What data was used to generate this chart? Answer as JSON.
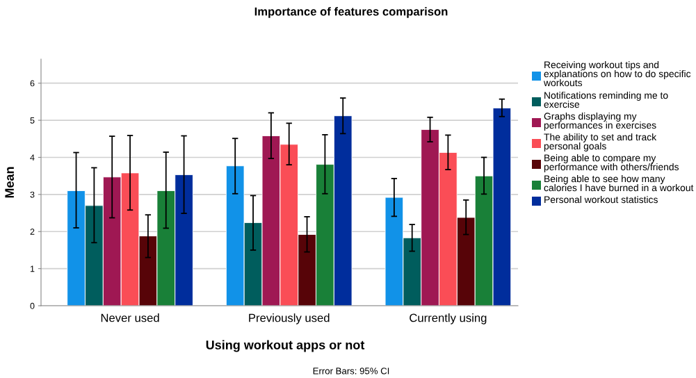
{
  "chart_data": {
    "type": "bar",
    "title": "Importance of features comparison",
    "xlabel": "Using workout apps or not",
    "ylabel": "Mean",
    "categories": [
      "Never used",
      "Previously used",
      "Currently using"
    ],
    "series": [
      {
        "name": "Receiving workout tips and explanations on how to do specific workouts",
        "color": "#1192e8",
        "values": [
          3.1,
          3.77,
          2.92
        ],
        "errors": [
          [
            2.1,
            4.13
          ],
          [
            3.02,
            4.51
          ],
          [
            2.41,
            3.43
          ]
        ]
      },
      {
        "name": "Notifications reminding me to exercise",
        "color": "#005d5d",
        "values": [
          2.7,
          2.24,
          1.83
        ],
        "errors": [
          [
            1.7,
            3.72
          ],
          [
            1.5,
            2.97
          ],
          [
            1.47,
            2.19
          ]
        ]
      },
      {
        "name": "Graphs displaying my performances in exercises",
        "color": "#9f1853",
        "values": [
          3.47,
          4.58,
          4.75
        ],
        "errors": [
          [
            2.37,
            4.57
          ],
          [
            3.97,
            5.2
          ],
          [
            4.42,
            5.08
          ]
        ]
      },
      {
        "name": "The ability to set and track personal goals",
        "color": "#fa4d56",
        "values": [
          3.58,
          4.35,
          4.13
        ],
        "errors": [
          [
            2.58,
            4.59
          ],
          [
            3.8,
            4.92
          ],
          [
            3.67,
            4.6
          ]
        ]
      },
      {
        "name": "Being able to compare my performance with others/friends",
        "color": "#570408",
        "values": [
          1.88,
          1.92,
          2.38
        ],
        "errors": [
          [
            1.3,
            2.45
          ],
          [
            1.45,
            2.4
          ],
          [
            1.92,
            2.85
          ]
        ]
      },
      {
        "name": "Being able to see how many calories I have burned in a workout",
        "color": "#198038",
        "values": [
          3.1,
          3.81,
          3.5
        ],
        "errors": [
          [
            2.09,
            4.14
          ],
          [
            3.02,
            4.61
          ],
          [
            3.01,
            4.0
          ]
        ]
      },
      {
        "name": "Personal workout statistics",
        "color": "#002d9c",
        "values": [
          3.53,
          5.12,
          5.33
        ],
        "errors": [
          [
            2.49,
            4.58
          ],
          [
            4.64,
            5.6
          ],
          [
            5.1,
            5.57
          ]
        ]
      }
    ],
    "ylim": [
      0,
      6.65
    ],
    "yticks": [
      0,
      1,
      2,
      3,
      4,
      5,
      6
    ],
    "grid": "y",
    "legend": "right",
    "annotations": [
      "Error Bars: 95% CI"
    ]
  }
}
